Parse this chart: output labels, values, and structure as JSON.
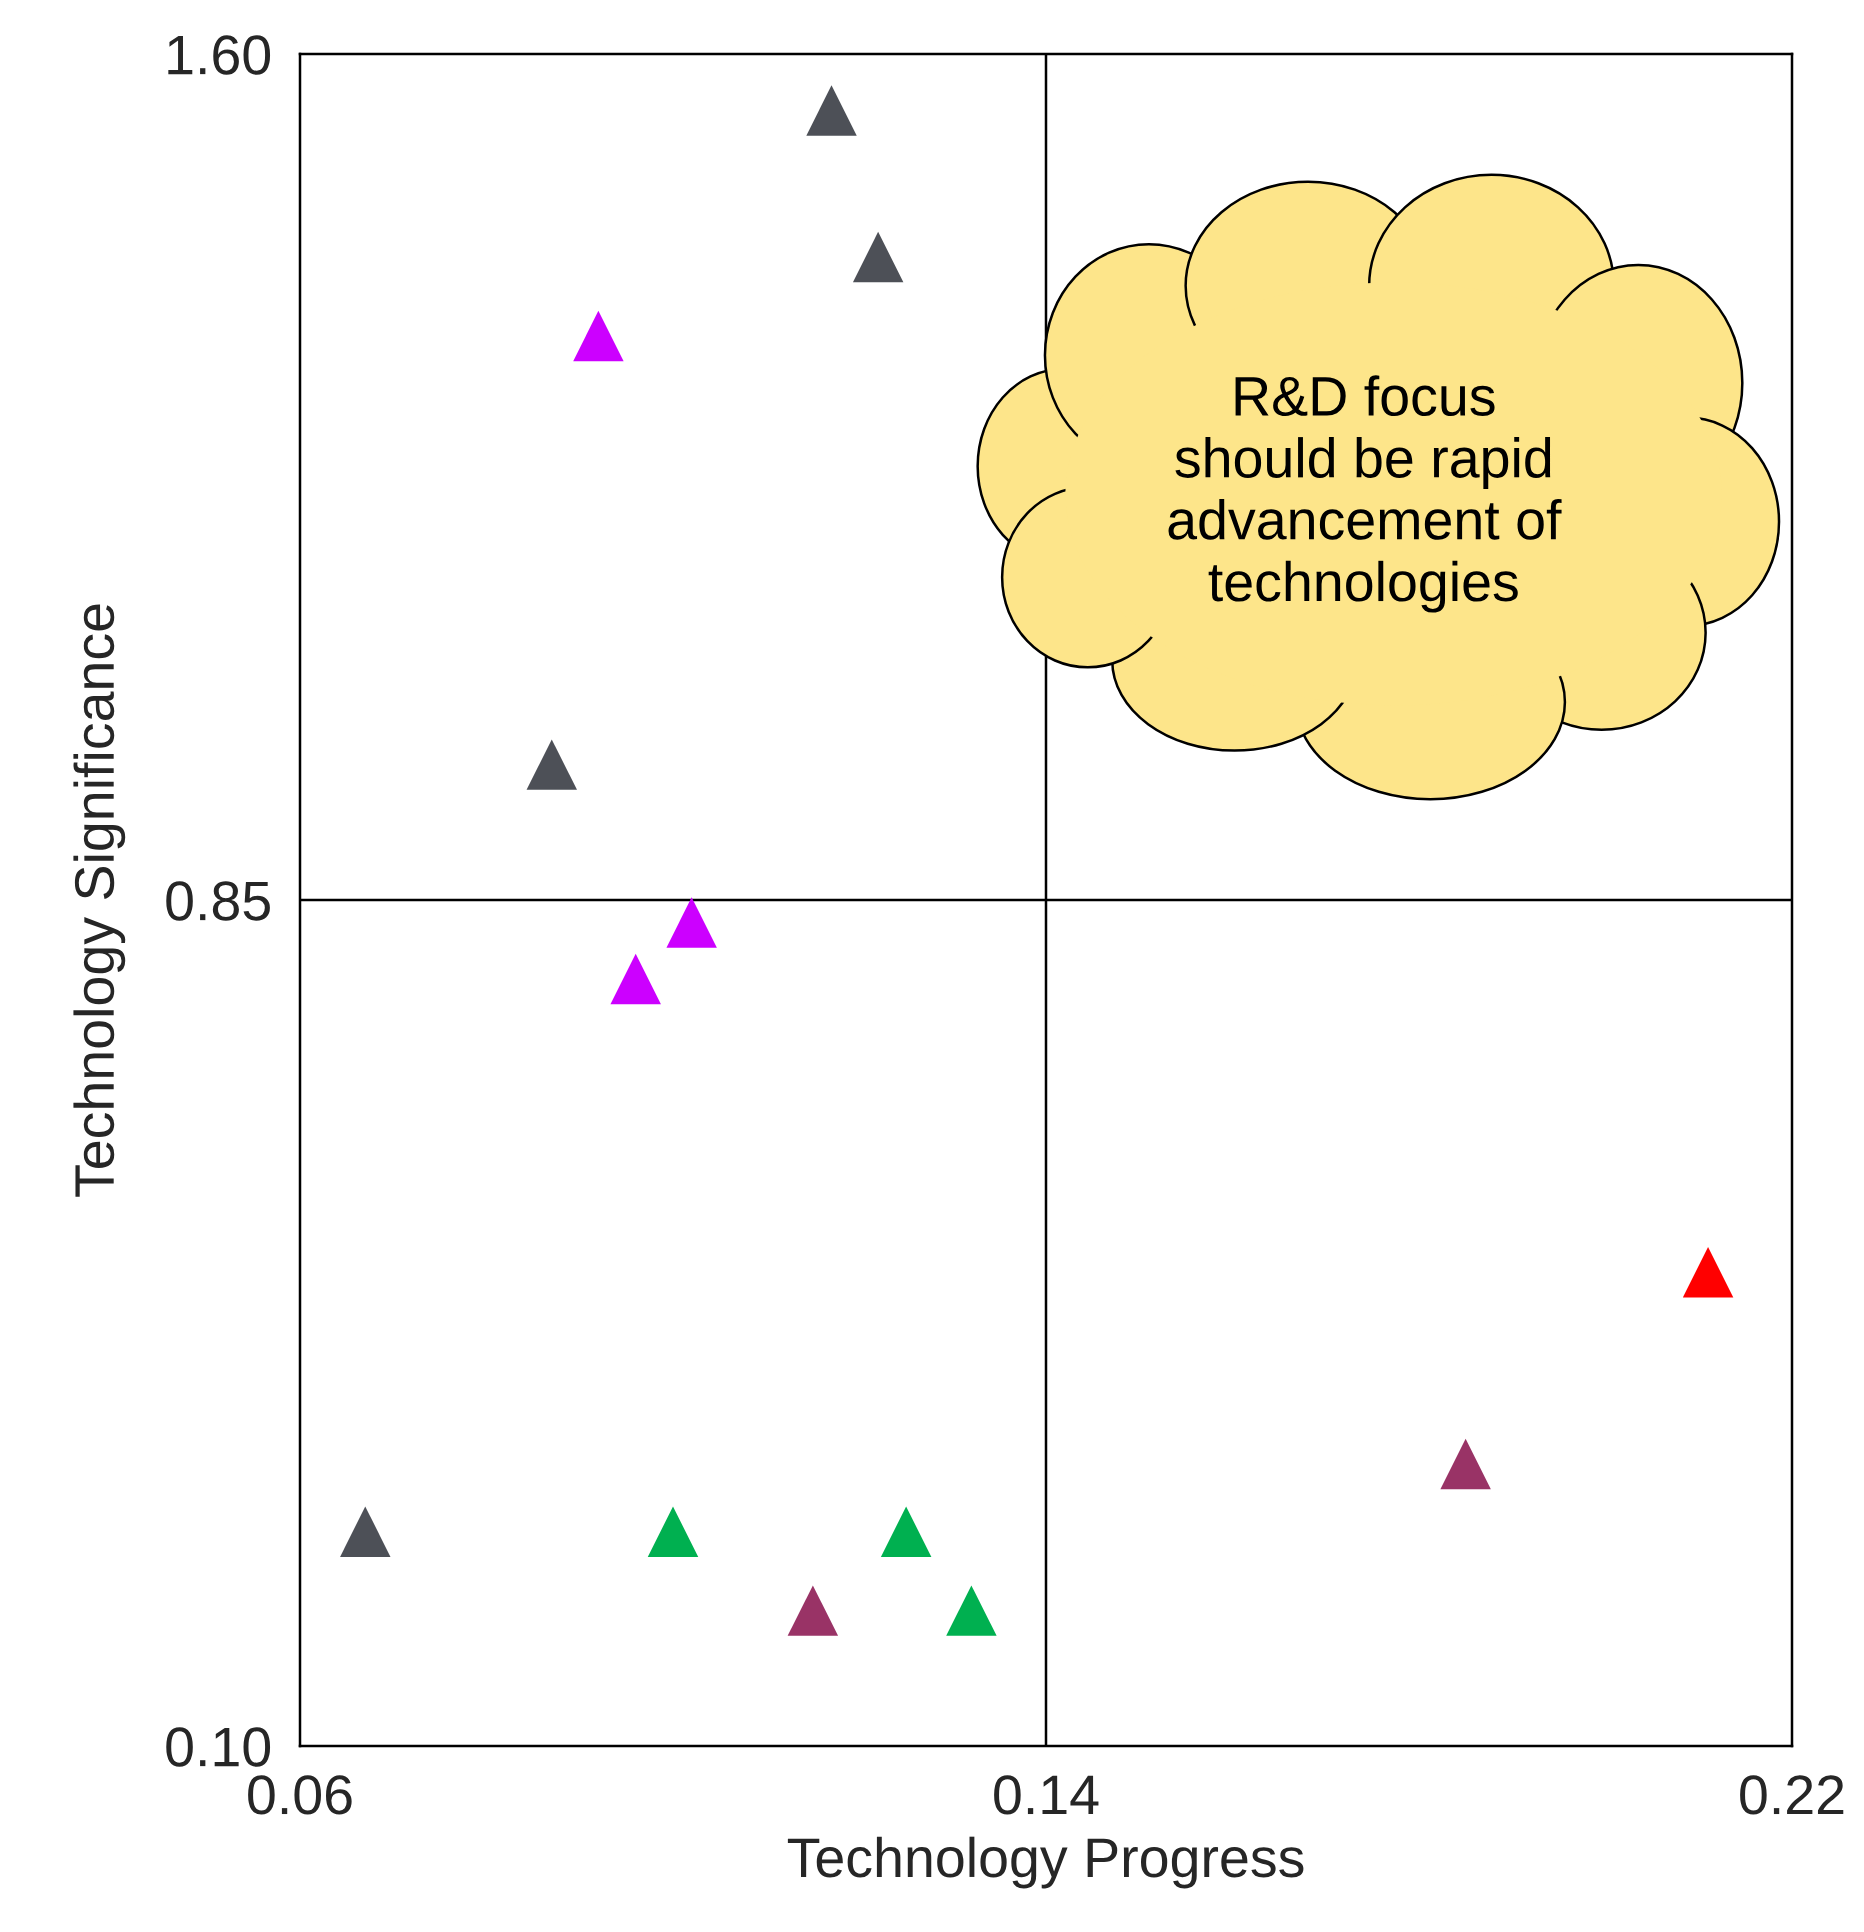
{
  "chart_data": {
    "type": "scatter",
    "xlabel": "Technology Progress",
    "ylabel": "Technology Significance",
    "x": [
      0.117,
      0.122,
      0.092,
      0.087,
      0.102,
      0.096,
      0.067,
      0.1,
      0.125,
      0.132,
      0.115,
      0.185,
      0.211
    ],
    "values": [
      1.55,
      1.42,
      1.35,
      0.97,
      0.83,
      0.78,
      0.29,
      0.29,
      0.29,
      0.22,
      0.22,
      0.35,
      0.52
    ],
    "colors": [
      "#4d5057",
      "#4d5057",
      "#cc00ff",
      "#4d5057",
      "#cc00ff",
      "#cc00ff",
      "#4d5057",
      "#00b050",
      "#00b050",
      "#00b050",
      "#993366",
      "#993366",
      "#ff0000"
    ],
    "marker": "triangle",
    "xlim": [
      0.06,
      0.22
    ],
    "xticks": [
      0.06,
      0.14,
      0.22
    ],
    "ylim": [
      0.1,
      1.6
    ],
    "yticks": [
      {
        "value": 0.1,
        "label": "0.10"
      },
      0.85,
      {
        "value": 1.6,
        "label": "1.60"
      }
    ],
    "ref_lines": [
      {
        "axis": "x",
        "value": 0.14,
        "color": "#000000"
      },
      {
        "axis": "y",
        "value": 0.85,
        "color": "#000000"
      }
    ],
    "annotations": [
      "R&D focus\nshould be rapid\nadvancement of\ntechnologies"
    ]
  }
}
